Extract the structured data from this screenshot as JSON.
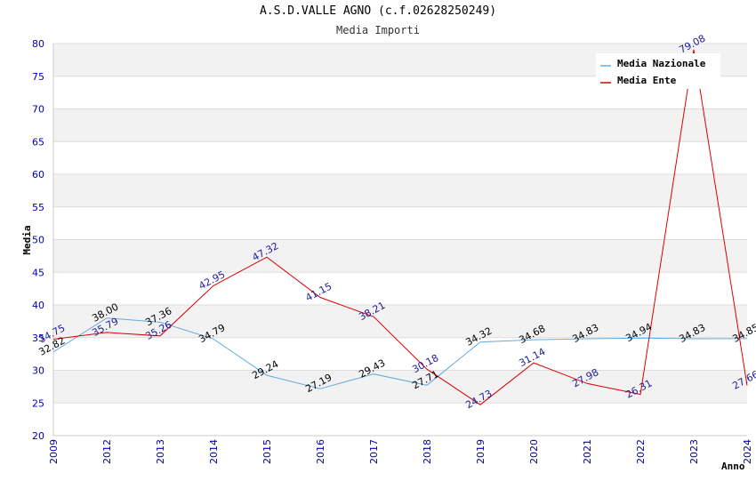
{
  "chart_data": {
    "type": "line",
    "title": "A.S.D.VALLE AGNO (c.f.02628250249)",
    "subtitle": "Media Importi",
    "xlabel": "Anno",
    "ylabel": "Media",
    "ylim": [
      20,
      80
    ],
    "yticks": [
      20,
      25,
      30,
      35,
      40,
      45,
      50,
      55,
      60,
      65,
      70,
      75,
      80
    ],
    "categories": [
      "2009",
      "2012",
      "2013",
      "2014",
      "2015",
      "2016",
      "2017",
      "2018",
      "2019",
      "2020",
      "2021",
      "2022",
      "2023",
      "2024"
    ],
    "series": [
      {
        "name": "Media Nazionale",
        "color": "#66aadd",
        "values": [
          32.82,
          38.0,
          37.36,
          34.79,
          29.24,
          27.19,
          29.43,
          27.71,
          34.32,
          34.68,
          34.83,
          34.94,
          34.83,
          34.85
        ],
        "labels": [
          "32.82",
          "38.00",
          "37.36",
          "34.79",
          "29.24",
          "27.19",
          "29.43",
          "27.71",
          "34.32",
          "34.68",
          "34.83",
          "34.94",
          "34.83",
          "34.85"
        ]
      },
      {
        "name": "Media Ente",
        "color": "#dd0000",
        "values": [
          34.75,
          35.79,
          35.26,
          42.95,
          47.32,
          41.15,
          38.21,
          30.18,
          24.73,
          31.14,
          27.98,
          26.31,
          79.08,
          27.66
        ],
        "labels": [
          "34.75",
          "35.79",
          "35.26",
          "42.95",
          "47.32",
          "41.15",
          "38.21",
          "30.18",
          "24.73",
          "31.14",
          "27.98",
          "26.31",
          "79.08",
          "27.66"
        ]
      }
    ],
    "legend": "top-right",
    "grid": true
  }
}
